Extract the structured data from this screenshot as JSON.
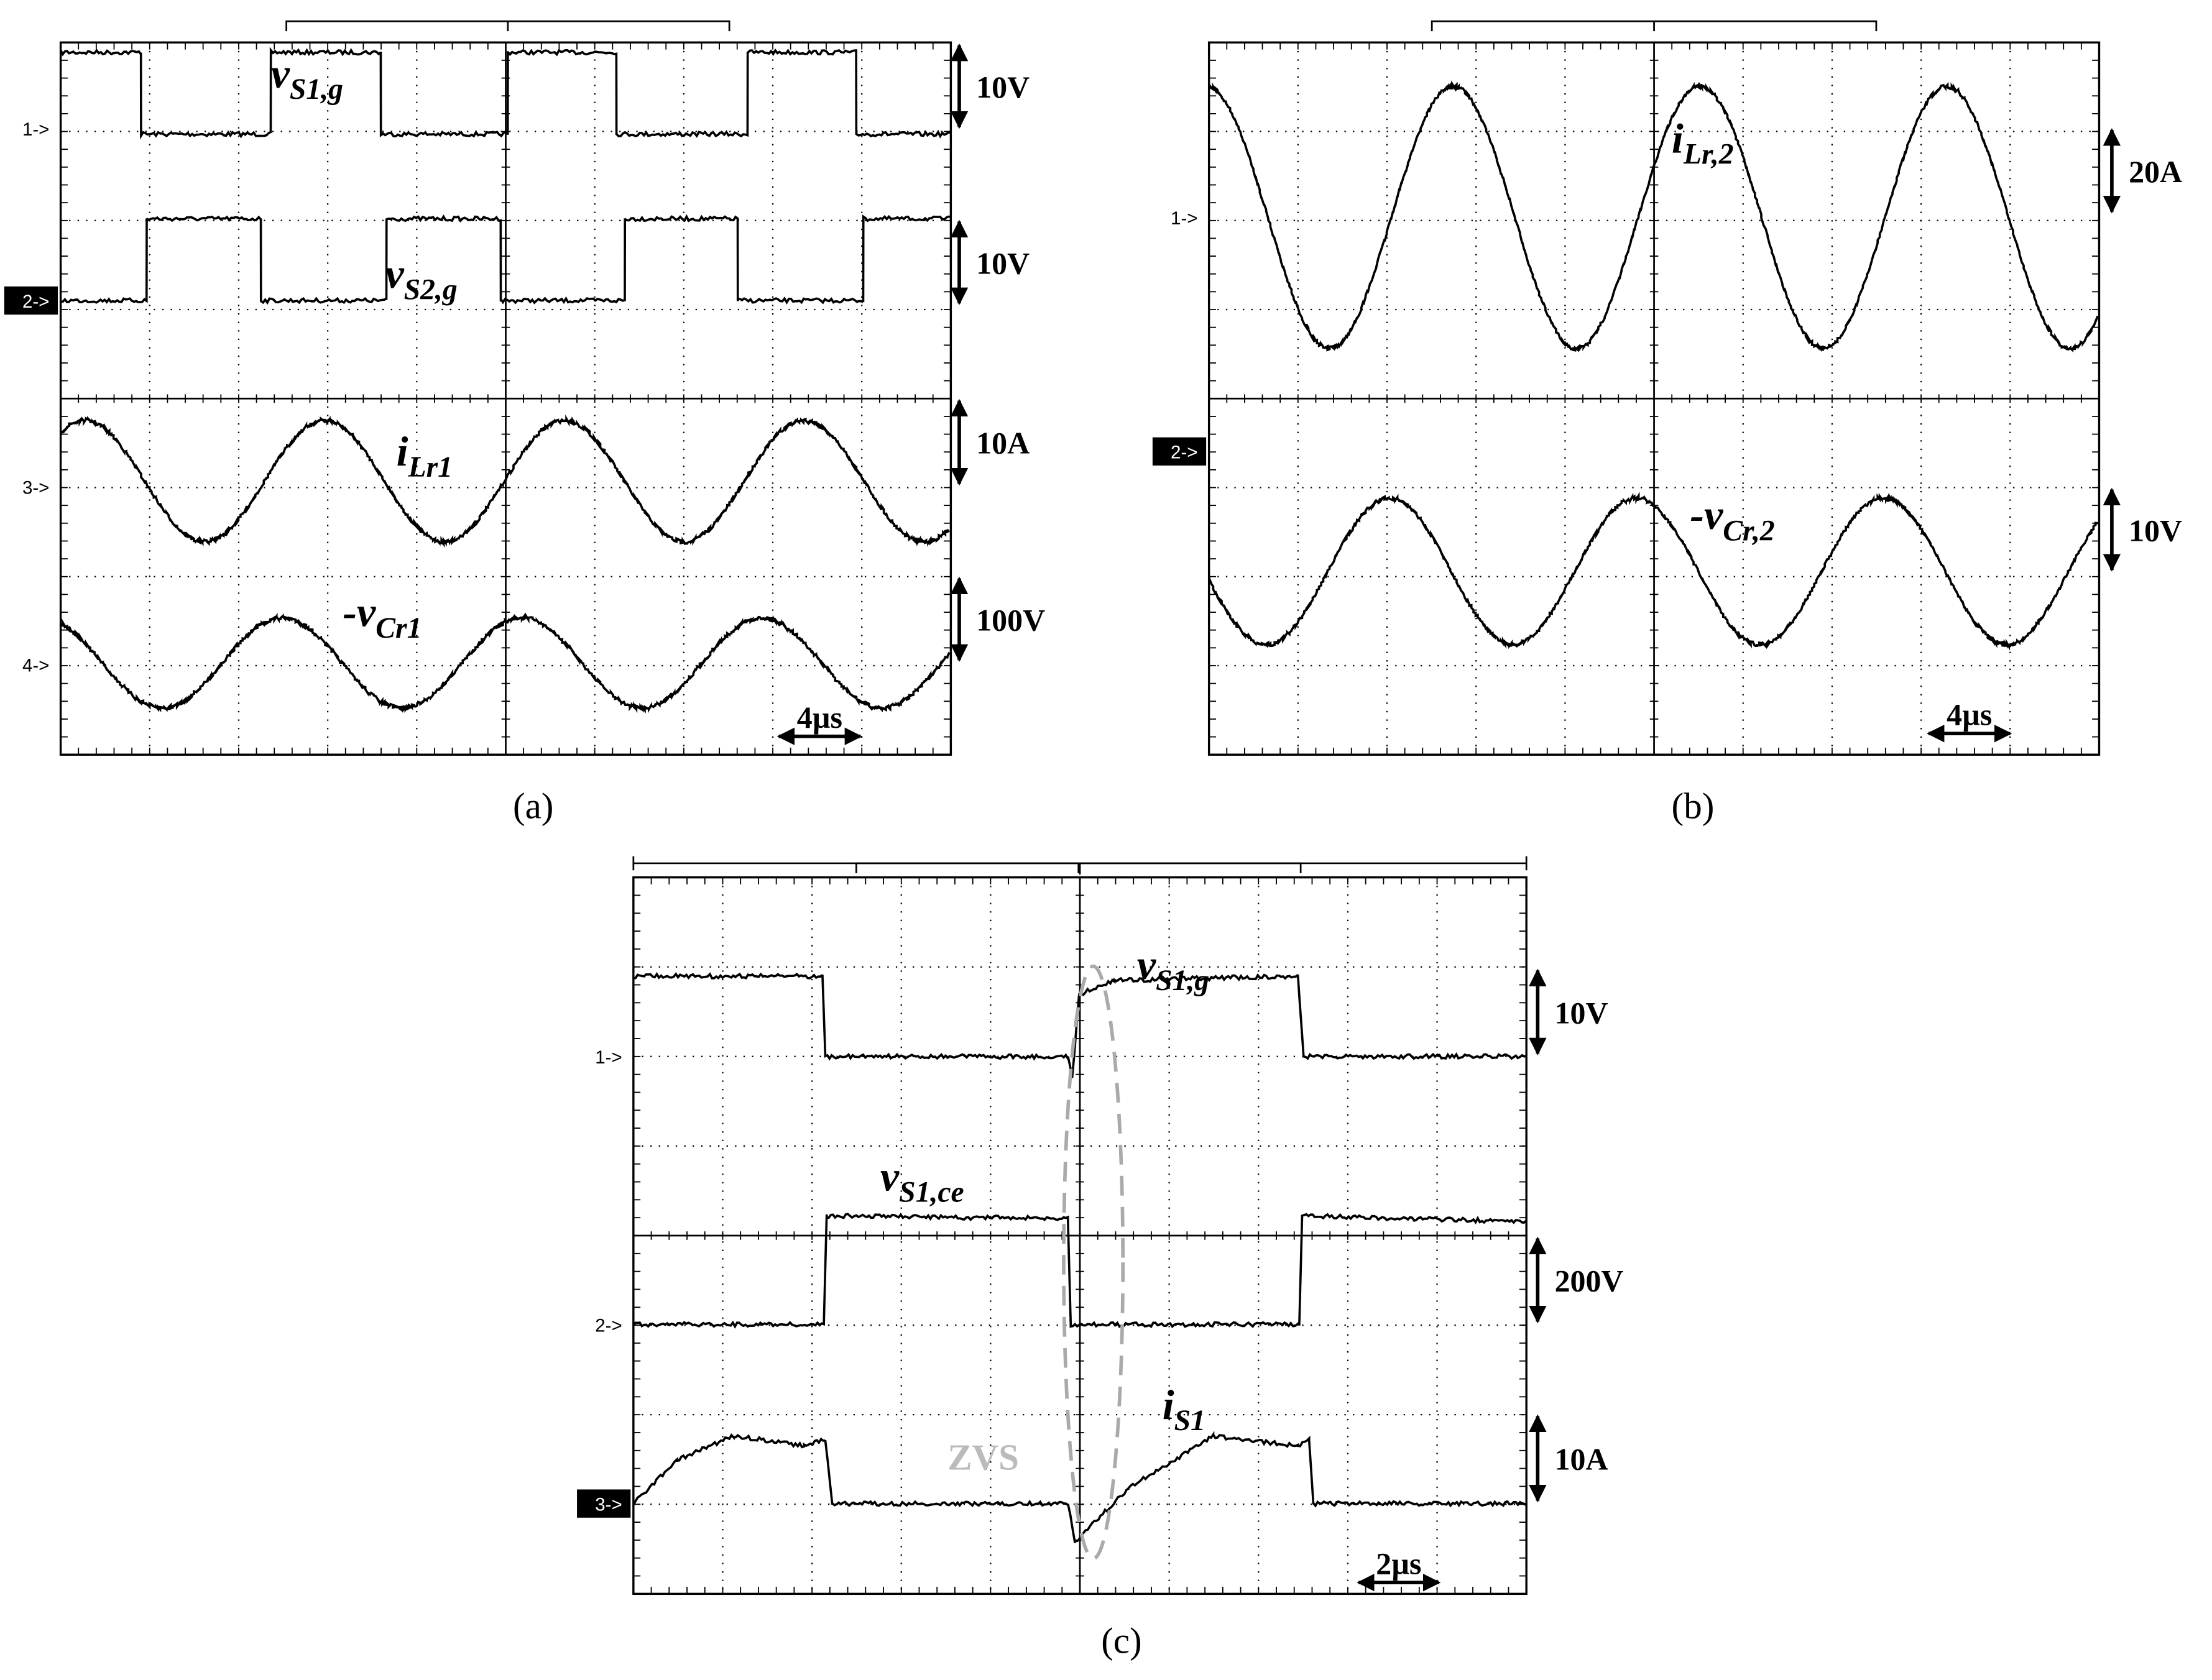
{
  "panels": [
    {
      "label": "(a)",
      "time_scale": "4µs",
      "channels": [
        {
          "marker": "1->",
          "scale": "10V",
          "signal": {
            "main": "v",
            "sub": "S1,g"
          }
        },
        {
          "marker": "2->",
          "scale": "10V",
          "signal": {
            "main": "v",
            "sub": "S2,g"
          }
        },
        {
          "marker": "3->",
          "scale": "10A",
          "signal": {
            "main": "i",
            "sub": "Lr1"
          }
        },
        {
          "marker": "4->",
          "scale": "100V",
          "signal": {
            "main": "-v",
            "sub": "Cr1"
          }
        }
      ]
    },
    {
      "label": "(b)",
      "time_scale": "4µs",
      "channels": [
        {
          "marker": "1->",
          "scale": "20A",
          "signal": {
            "main": "i",
            "sub": "Lr,2"
          }
        },
        {
          "marker": "2->",
          "scale": "10V",
          "signal": {
            "main": "-v",
            "sub": "Cr,2"
          }
        }
      ]
    },
    {
      "label": "(c)",
      "time_scale": "2µs",
      "channels": [
        {
          "marker": "1->",
          "scale": "10V",
          "signal": {
            "main": "v",
            "sub": "S1,g"
          }
        },
        {
          "marker": "2->",
          "scale": "200V",
          "signal": {
            "main": "v",
            "sub": "S1,ce"
          }
        },
        {
          "marker": "3->",
          "scale": "10A",
          "signal": {
            "main": "i",
            "sub": "S1"
          }
        }
      ]
    }
  ],
  "annotation": "ZVS"
}
